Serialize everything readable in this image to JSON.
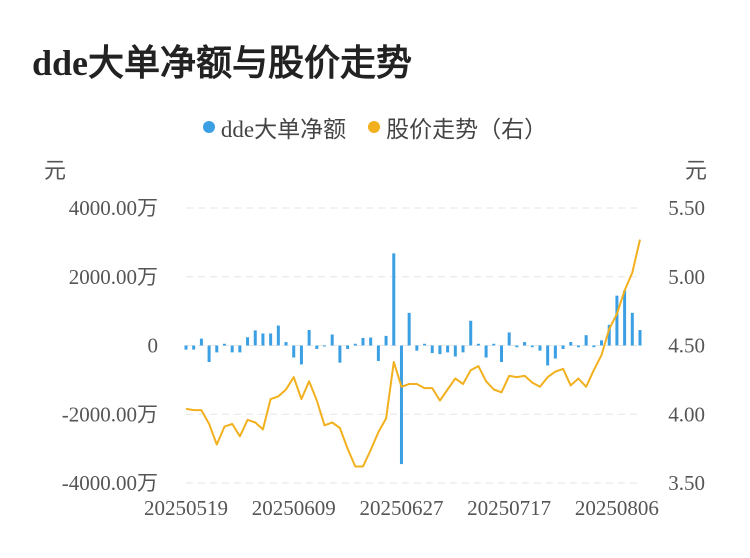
{
  "title": "dde大单净额与股价走势",
  "colors": {
    "bar": "#3a9fe3",
    "line": "#f2b01e",
    "grid": "#e6e6e6",
    "text": "#555555"
  },
  "chart_data": {
    "type": "bar+line",
    "legend": [
      "dde大单净额",
      "股价走势（右）"
    ],
    "yleft_unit": "元",
    "yright_unit": "元",
    "yleft_ticks": [
      "4000.00万",
      "2000.00万",
      "0",
      "-2000.00万",
      "-4000.00万"
    ],
    "yright_ticks": [
      "5.50",
      "5.00",
      "4.50",
      "4.00",
      "3.50"
    ],
    "yleft_lim": [
      -4000,
      4000
    ],
    "yright_lim": [
      3.5,
      5.5
    ],
    "x_tick_labels": [
      "20250519",
      "20250609",
      "20250627",
      "20250717",
      "20250806"
    ],
    "x_tick_indices": [
      0,
      14,
      28,
      42,
      56
    ],
    "series": [
      {
        "name": "dde大单净额",
        "type": "bar",
        "unit": "万",
        "values": [
          -120,
          -120,
          200,
          -480,
          -200,
          50,
          -200,
          -200,
          240,
          440,
          350,
          350,
          580,
          100,
          -350,
          -550,
          450,
          -100,
          0,
          320,
          -500,
          -100,
          50,
          220,
          230,
          -450,
          280,
          2680,
          -3450,
          950,
          -150,
          50,
          -220,
          -250,
          -200,
          -320,
          -200,
          720,
          50,
          -350,
          50,
          -480,
          380,
          -50,
          100,
          -50,
          -150,
          -580,
          -380,
          -100,
          100,
          -50,
          300,
          -50,
          150,
          600,
          1450,
          1600,
          950,
          450
        ]
      },
      {
        "name": "股价走势（右）",
        "type": "line",
        "unit": "元",
        "values": [
          4.04,
          4.03,
          4.03,
          3.93,
          3.78,
          3.91,
          3.93,
          3.84,
          3.96,
          3.94,
          3.89,
          4.11,
          4.13,
          4.18,
          4.27,
          4.11,
          4.24,
          4.1,
          3.92,
          3.94,
          3.9,
          3.75,
          3.62,
          3.62,
          3.74,
          3.87,
          3.97,
          4.38,
          4.2,
          4.22,
          4.22,
          4.19,
          4.19,
          4.1,
          4.18,
          4.26,
          4.22,
          4.32,
          4.35,
          4.24,
          4.18,
          4.16,
          4.28,
          4.27,
          4.28,
          4.23,
          4.2,
          4.27,
          4.31,
          4.33,
          4.21,
          4.26,
          4.2,
          4.32,
          4.43,
          4.62,
          4.73,
          4.9,
          5.03,
          5.27
        ]
      }
    ]
  }
}
